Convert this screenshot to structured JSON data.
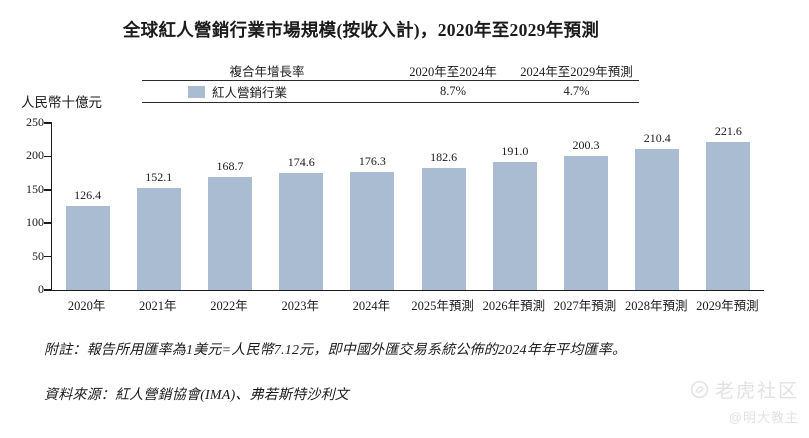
{
  "title": "全球紅人營銷行業市場規模(按收入計)，2020年至2029年預測",
  "legend_table": {
    "cagr_label": "複合年增長率",
    "period1_label": "2020年至2024年",
    "period2_label": "2024年至2029年預測",
    "series_label": "紅人營銷行業",
    "period1_value": "8.7%",
    "period2_value": "4.7%"
  },
  "y_axis_label": "人民幣十億元",
  "chart_data": {
    "type": "bar",
    "title": "全球紅人營銷行業市場規模(按收入計)，2020年至2029年預測",
    "categories": [
      "2020年",
      "2021年",
      "2022年",
      "2023年",
      "2024年",
      "2025年預測",
      "2026年預測",
      "2027年預測",
      "2028年預測",
      "2029年預測"
    ],
    "values": [
      126.4,
      152.1,
      168.7,
      174.6,
      176.3,
      182.6,
      191.0,
      200.3,
      210.4,
      221.6
    ],
    "value_labels": [
      "126.4",
      "152.1",
      "168.7",
      "174.6",
      "176.3",
      "182.6",
      "191.0",
      "200.3",
      "210.4",
      "221.6"
    ],
    "xlabel": "",
    "ylabel": "人民幣十億元",
    "ylim": [
      0,
      250
    ],
    "yticks": [
      0,
      50,
      100,
      150,
      200,
      250
    ],
    "grid": false,
    "legend_position": "top-table",
    "bar_color": "#a9bcd1",
    "series": [
      {
        "name": "紅人營銷行業",
        "cagr_2020_2024": "8.7%",
        "cagr_2024_2029_forecast": "4.7%"
      }
    ]
  },
  "footnotes": {
    "note": "附註：報告所用匯率為1美元=人民幣7.12元，即中國外匯交易系統公佈的2024年年平均匯率。",
    "source": "資料來源：紅人營銷協會(IMA)、弗若斯特沙利文"
  },
  "watermark": {
    "brand": "老虎社区",
    "username": "@明大教主"
  }
}
